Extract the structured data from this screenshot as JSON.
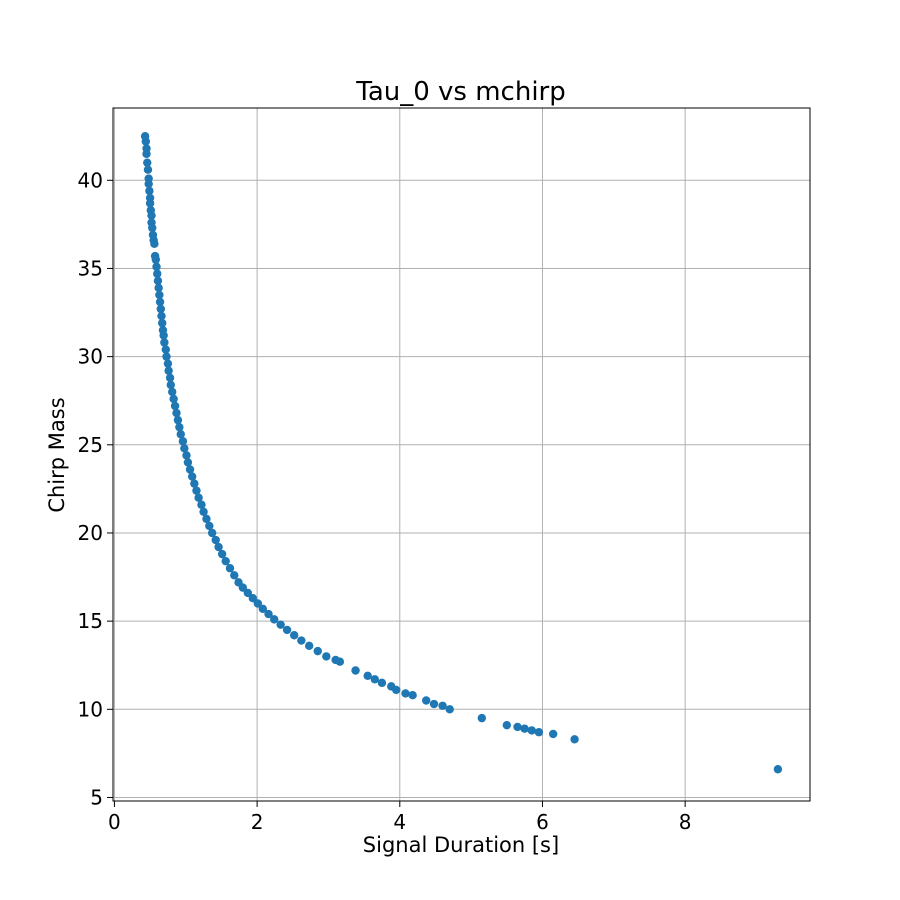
{
  "chart_data": {
    "type": "scatter",
    "title": "Tau_0 vs mchirp",
    "xlabel": "Signal Duration [s]",
    "ylabel": "Chirp Mass",
    "xlim": [
      -0.02,
      9.75
    ],
    "ylim": [
      4.8,
      44.1
    ],
    "xticks": [
      0,
      2,
      4,
      6,
      8
    ],
    "yticks": [
      5,
      10,
      15,
      20,
      25,
      30,
      35,
      40
    ],
    "grid": true,
    "marker_color": "#1f77b4",
    "series": [
      {
        "points": [
          [
            0.43,
            42.5
          ],
          [
            0.44,
            42.2
          ],
          [
            0.45,
            41.8
          ],
          [
            0.45,
            41.5
          ],
          [
            0.46,
            41.0
          ],
          [
            0.47,
            40.6
          ],
          [
            0.48,
            40.1
          ],
          [
            0.48,
            39.8
          ],
          [
            0.49,
            39.4
          ],
          [
            0.5,
            39.0
          ],
          [
            0.5,
            38.7
          ],
          [
            0.51,
            38.3
          ],
          [
            0.52,
            38.0
          ],
          [
            0.52,
            37.6
          ],
          [
            0.53,
            37.3
          ],
          [
            0.54,
            36.9
          ],
          [
            0.55,
            36.6
          ],
          [
            0.56,
            36.4
          ],
          [
            0.57,
            35.7
          ],
          [
            0.58,
            35.5
          ],
          [
            0.59,
            35.1
          ],
          [
            0.6,
            34.7
          ],
          [
            0.61,
            34.3
          ],
          [
            0.62,
            33.9
          ],
          [
            0.63,
            33.5
          ],
          [
            0.64,
            33.1
          ],
          [
            0.65,
            32.7
          ],
          [
            0.66,
            32.3
          ],
          [
            0.67,
            31.9
          ],
          [
            0.68,
            31.5
          ],
          [
            0.69,
            31.2
          ],
          [
            0.7,
            30.8
          ],
          [
            0.72,
            30.4
          ],
          [
            0.73,
            30.0
          ],
          [
            0.75,
            29.6
          ],
          [
            0.76,
            29.2
          ],
          [
            0.78,
            28.8
          ],
          [
            0.79,
            28.4
          ],
          [
            0.81,
            28.0
          ],
          [
            0.83,
            27.6
          ],
          [
            0.85,
            27.2
          ],
          [
            0.87,
            26.8
          ],
          [
            0.89,
            26.4
          ],
          [
            0.91,
            26.0
          ],
          [
            0.93,
            25.6
          ],
          [
            0.96,
            25.2
          ],
          [
            0.98,
            24.8
          ],
          [
            1.01,
            24.4
          ],
          [
            1.03,
            24.0
          ],
          [
            1.06,
            23.6
          ],
          [
            1.09,
            23.2
          ],
          [
            1.12,
            22.8
          ],
          [
            1.15,
            22.4
          ],
          [
            1.18,
            22.0
          ],
          [
            1.22,
            21.6
          ],
          [
            1.25,
            21.2
          ],
          [
            1.29,
            20.8
          ],
          [
            1.33,
            20.4
          ],
          [
            1.37,
            20.0
          ],
          [
            1.42,
            19.6
          ],
          [
            1.46,
            19.2
          ],
          [
            1.51,
            18.8
          ],
          [
            1.56,
            18.4
          ],
          [
            1.62,
            18.0
          ],
          [
            1.68,
            17.6
          ],
          [
            1.74,
            17.2
          ],
          [
            1.8,
            16.9
          ],
          [
            1.87,
            16.6
          ],
          [
            1.94,
            16.3
          ],
          [
            2.01,
            16.0
          ],
          [
            2.08,
            15.7
          ],
          [
            2.16,
            15.4
          ],
          [
            2.24,
            15.1
          ],
          [
            2.33,
            14.8
          ],
          [
            2.42,
            14.5
          ],
          [
            2.52,
            14.2
          ],
          [
            2.62,
            13.9
          ],
          [
            2.73,
            13.6
          ],
          [
            2.85,
            13.3
          ],
          [
            2.97,
            13.0
          ],
          [
            3.1,
            12.8
          ],
          [
            3.16,
            12.7
          ],
          [
            3.38,
            12.2
          ],
          [
            3.55,
            11.9
          ],
          [
            3.65,
            11.7
          ],
          [
            3.75,
            11.5
          ],
          [
            3.88,
            11.3
          ],
          [
            3.95,
            11.1
          ],
          [
            4.08,
            10.9
          ],
          [
            4.18,
            10.8
          ],
          [
            4.37,
            10.5
          ],
          [
            4.48,
            10.3
          ],
          [
            4.6,
            10.2
          ],
          [
            4.7,
            10.0
          ],
          [
            5.15,
            9.5
          ],
          [
            5.5,
            9.1
          ],
          [
            5.65,
            9.0
          ],
          [
            5.75,
            8.9
          ],
          [
            5.85,
            8.8
          ],
          [
            5.95,
            8.7
          ],
          [
            6.15,
            8.6
          ],
          [
            6.45,
            8.3
          ],
          [
            9.3,
            6.6
          ]
        ]
      }
    ]
  }
}
